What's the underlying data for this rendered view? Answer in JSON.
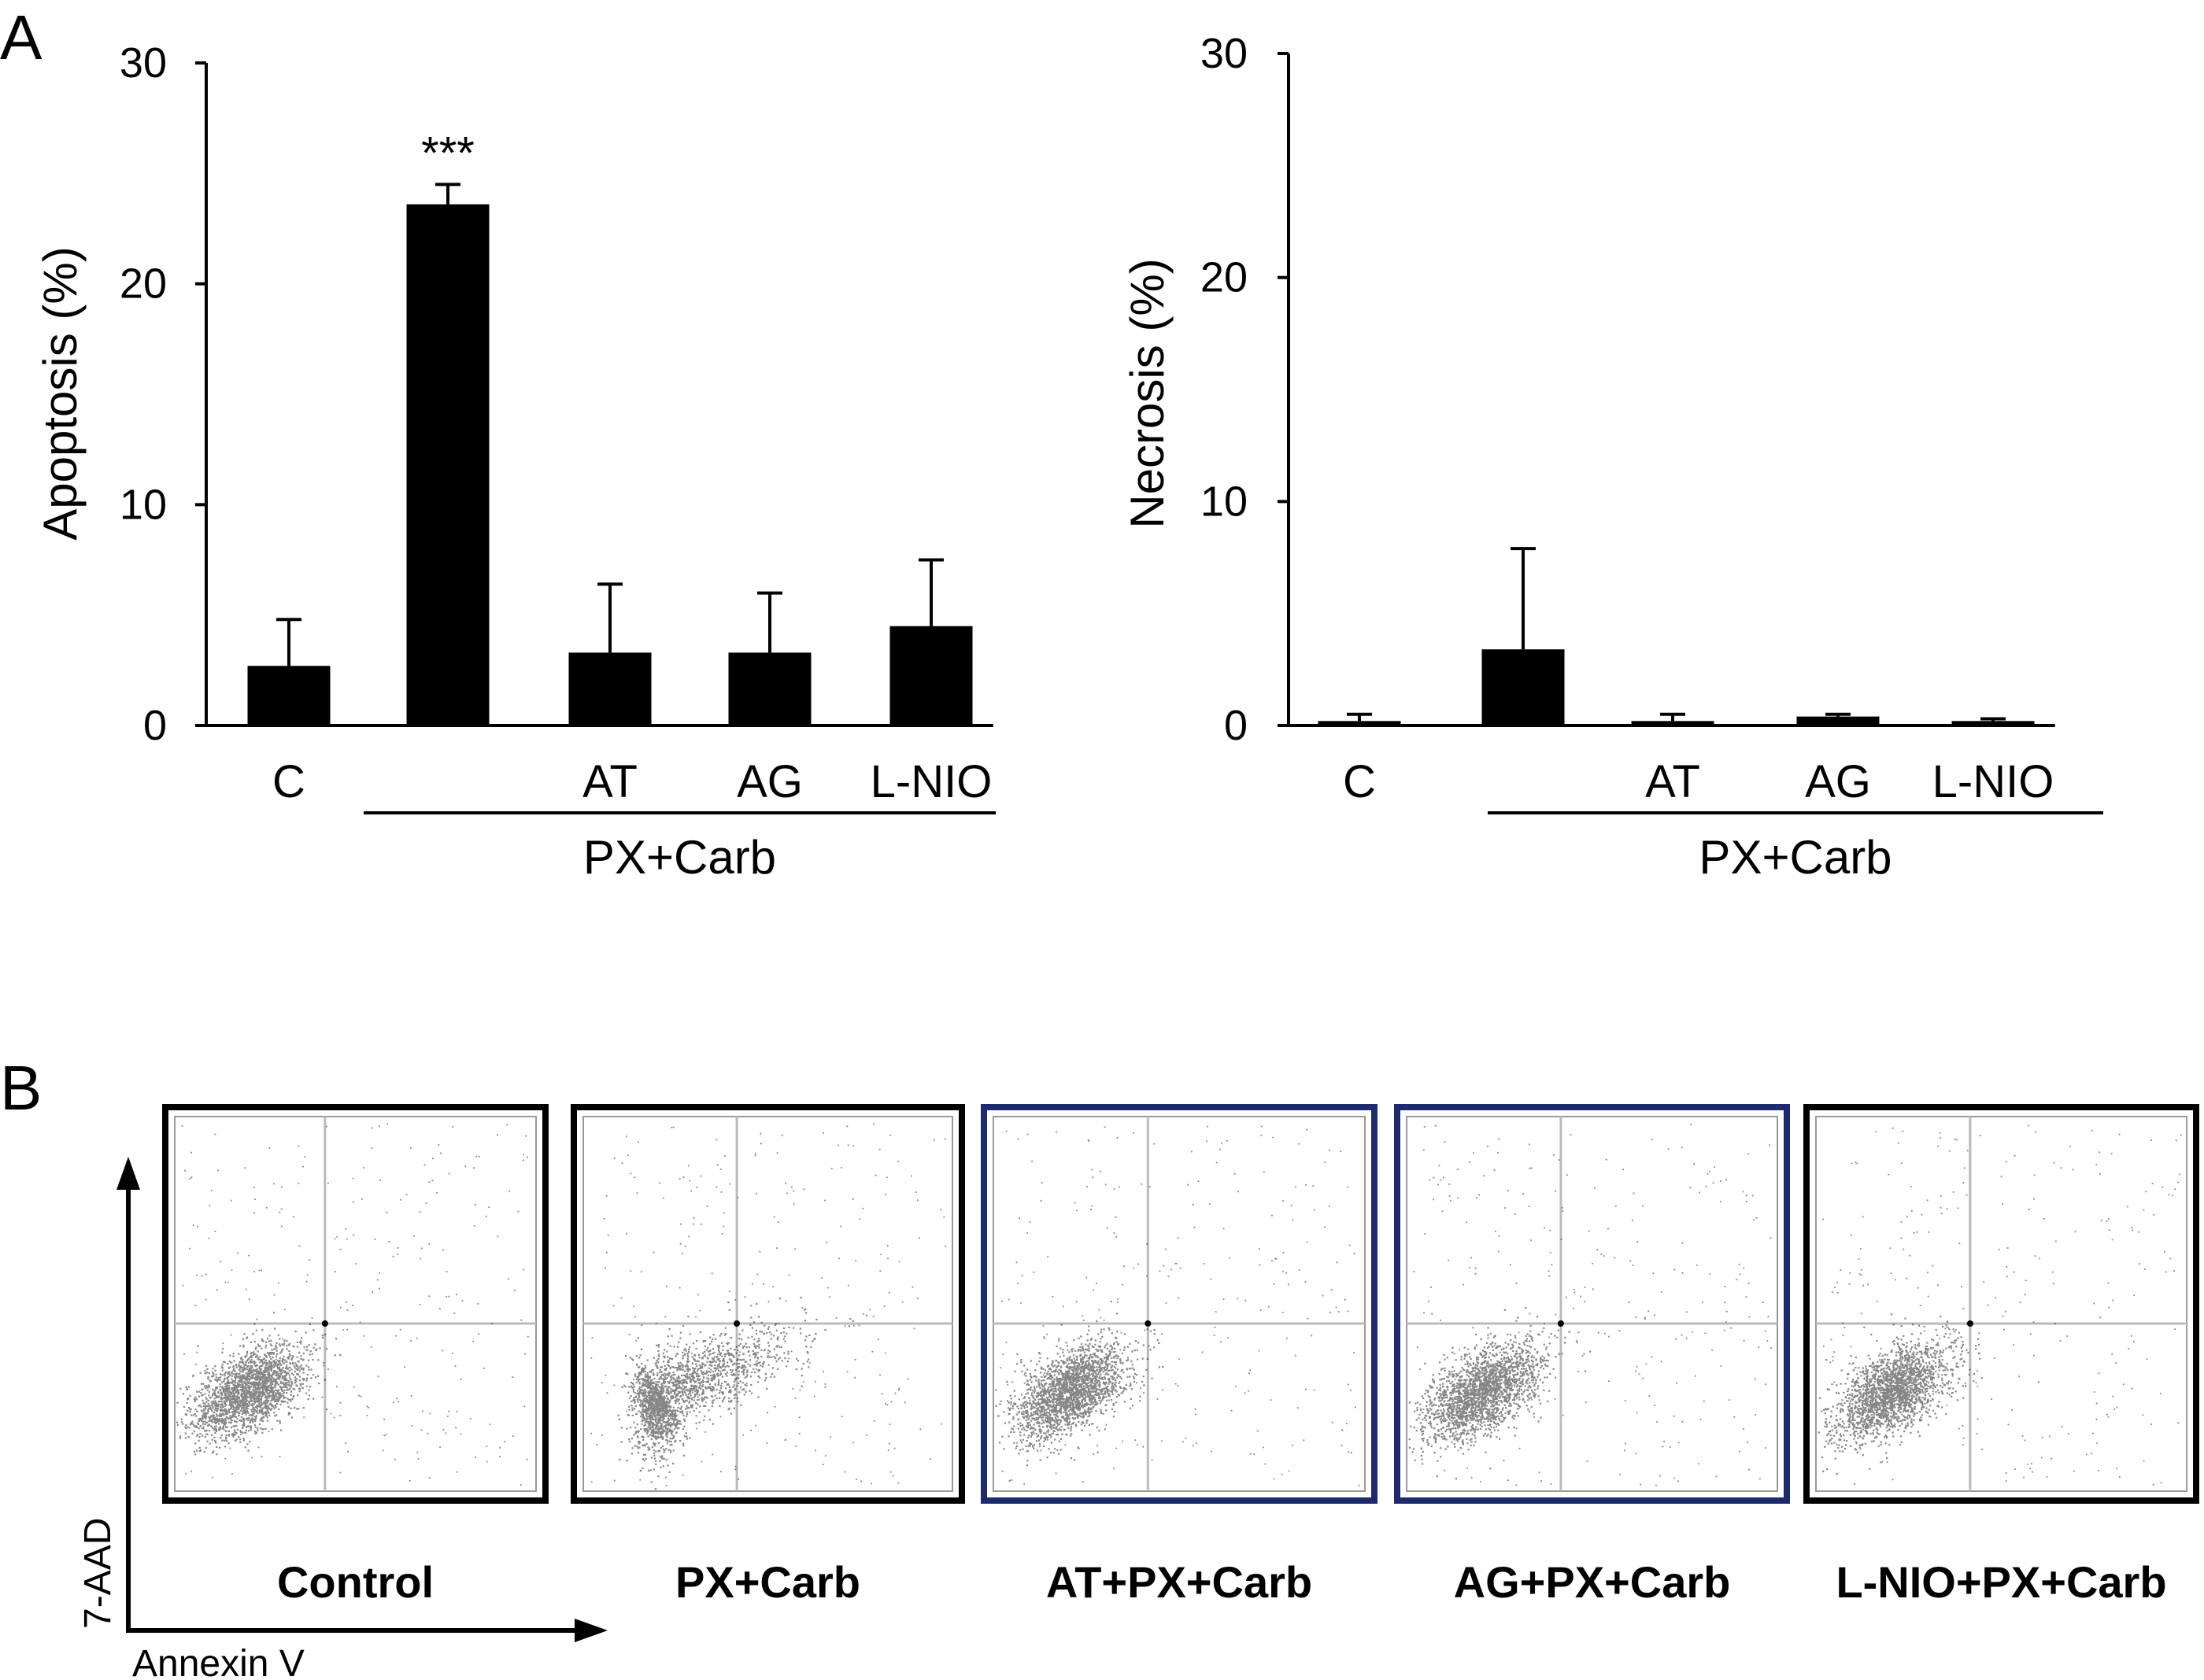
{
  "panel_a": {
    "label": "A",
    "group_label": "PX+Carb",
    "significance": "***"
  },
  "panel_b": {
    "label": "B",
    "x_axis_label": "Annexin V",
    "y_axis_label": "7-AAD",
    "plots": [
      {
        "title": "Control",
        "cluster_spread": 0.0
      },
      {
        "title": "PX+Carb",
        "cluster_spread": 0.35
      },
      {
        "title": "AT+PX+Carb",
        "cluster_spread": 0.0
      },
      {
        "title": "AG+PX+Carb",
        "cluster_spread": 0.08
      },
      {
        "title": "L-NIO+PX+Carb",
        "cluster_spread": 0.05
      }
    ]
  },
  "chart_data": [
    {
      "type": "bar",
      "categories": [
        "C",
        "",
        "AT",
        "AG",
        "L-NIO"
      ],
      "values": [
        2.7,
        23.6,
        3.3,
        3.3,
        4.5
      ],
      "errors": [
        2.1,
        0.9,
        3.1,
        2.7,
        3.0
      ],
      "ylabel": "Apoptosis (%)",
      "ylim": [
        0,
        30
      ],
      "yticks": [
        0,
        10,
        20,
        30
      ],
      "group_label": "PX+Carb",
      "annotation": "***",
      "grid": false
    },
    {
      "type": "bar",
      "categories": [
        "C",
        "",
        "AT",
        "AG",
        "L-NIO"
      ],
      "values": [
        0.2,
        3.4,
        0.2,
        0.4,
        0.2
      ],
      "errors": [
        0.3,
        4.5,
        0.3,
        0.1,
        0.1
      ],
      "ylabel": "Necrosis (%)",
      "ylim": [
        0,
        30
      ],
      "yticks": [
        0,
        10,
        20,
        30
      ],
      "group_label": "PX+Carb",
      "grid": false
    }
  ]
}
